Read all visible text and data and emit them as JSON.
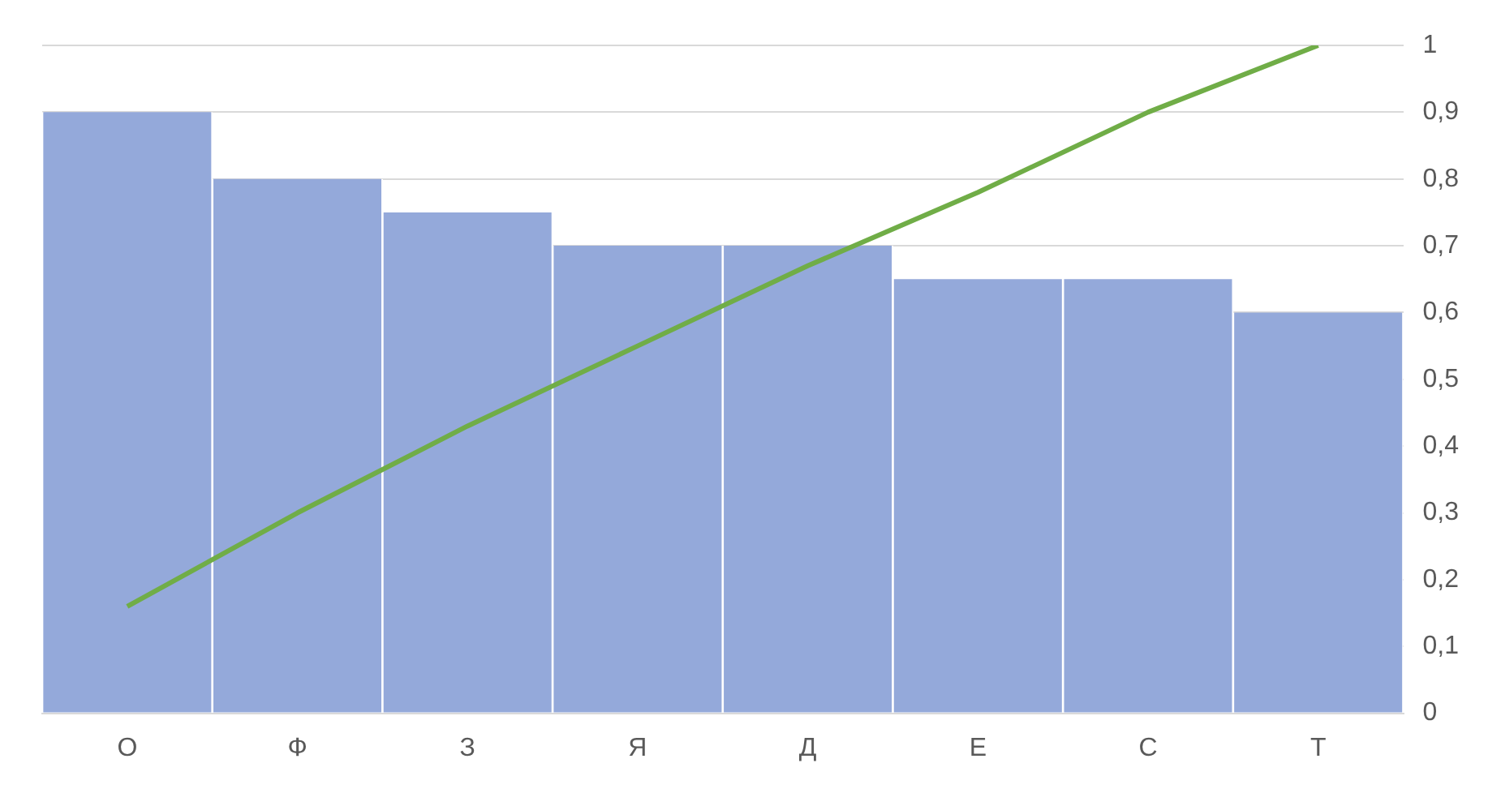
{
  "chart_data": {
    "type": "bar",
    "categories": [
      "О",
      "Ф",
      "З",
      "Я",
      "Д",
      "Е",
      "С",
      "Т"
    ],
    "series": [
      {
        "color": "#94a9da",
        "values": [
          0.9,
          0.8,
          0.75,
          0.7,
          0.7,
          0.65,
          0.65,
          0.6
        ]
      },
      {
        "type": "line",
        "color": "#70ad47",
        "values": [
          0.16,
          0.3,
          0.43,
          0.55,
          0.67,
          0.78,
          0.9,
          1
        ]
      }
    ],
    "ylim": [
      0,
      1
    ],
    "yticks": [
      {
        "value": 0,
        "label": "0"
      },
      {
        "value": 0.1,
        "label": "0,1"
      },
      {
        "value": 0.2,
        "label": "0,2"
      },
      {
        "value": 0.3,
        "label": "0,3"
      },
      {
        "value": 0.4,
        "label": "0,4"
      },
      {
        "value": 0.5,
        "label": "0,5"
      },
      {
        "value": 0.6,
        "label": "0,6"
      },
      {
        "value": 0.7,
        "label": "0,7"
      },
      {
        "value": 0.8,
        "label": "0,8"
      },
      {
        "value": 0.9,
        "label": "0,9"
      },
      {
        "value": 1,
        "label": "1"
      }
    ],
    "grid": "y",
    "legend": false,
    "marker": "none"
  }
}
